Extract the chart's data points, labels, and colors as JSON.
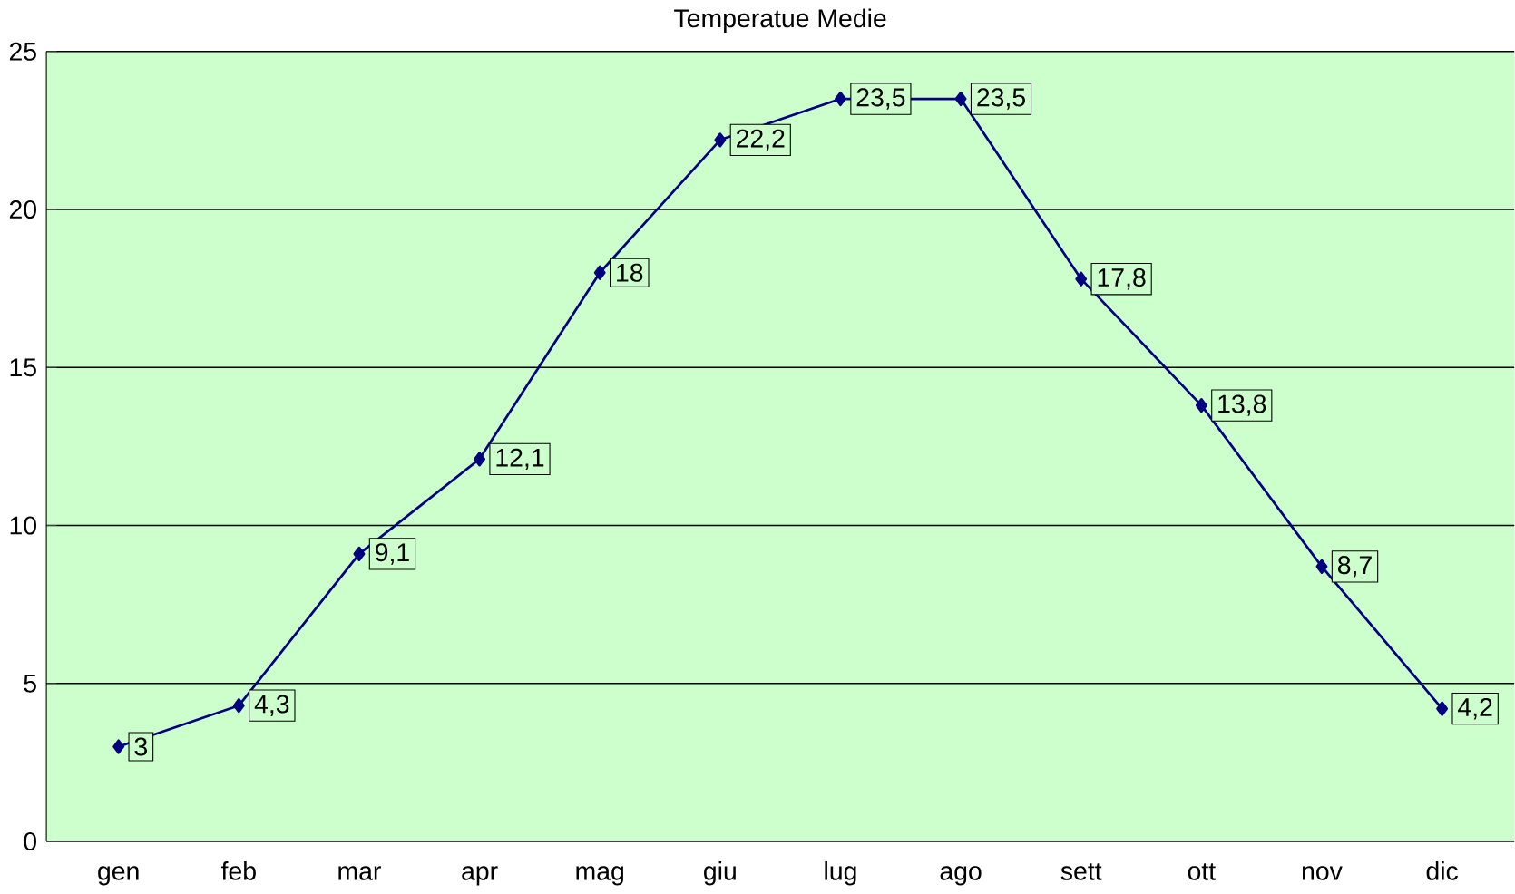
{
  "chart_data": {
    "type": "line",
    "title": "Temperatue Medie",
    "categories": [
      "gen",
      "feb",
      "mar",
      "apr",
      "mag",
      "giu",
      "lug",
      "ago",
      "sett",
      "ott",
      "nov",
      "dic"
    ],
    "values": [
      3,
      4.3,
      9.1,
      12.1,
      18,
      22.2,
      23.5,
      23.5,
      17.8,
      13.8,
      8.7,
      4.2
    ],
    "value_labels": [
      "3",
      "4,3",
      "9,1",
      "12,1",
      "18",
      "22,2",
      "23,5",
      "23,5",
      "17,8",
      "13,8",
      "8,7",
      "4,2"
    ],
    "color": "#000080",
    "ylim": [
      0,
      25
    ],
    "yticks": [
      0,
      5,
      10,
      15,
      20,
      25
    ],
    "grid": "y",
    "marker": "diamond",
    "line_style": "solid"
  }
}
